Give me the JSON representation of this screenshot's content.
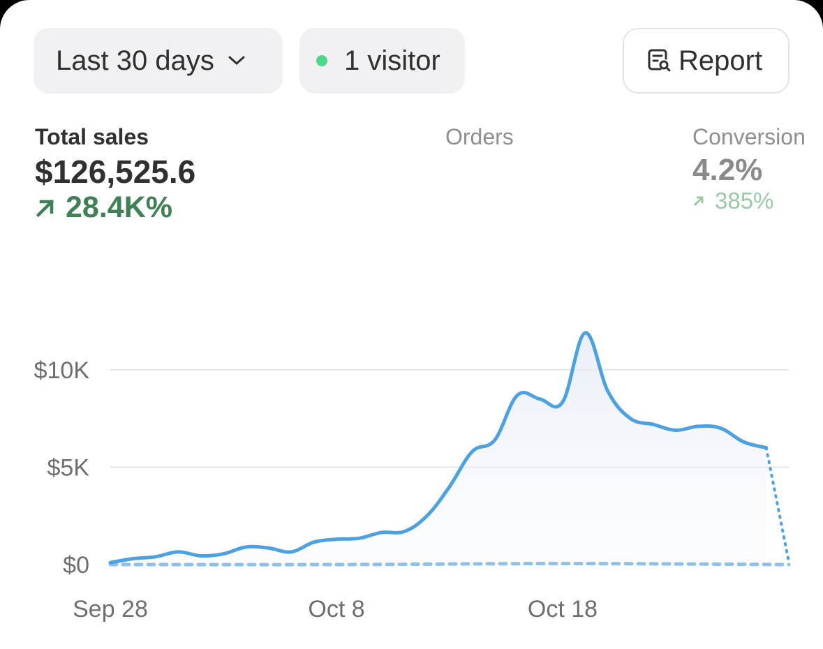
{
  "filters": {
    "date_range": "Last 30 days",
    "visitors": "1 visitor",
    "report_label": "Report"
  },
  "metrics": {
    "total_sales": {
      "label": "Total sales",
      "value": "$126,525.6",
      "change": "28.4K%"
    },
    "orders": {
      "label": "Orders"
    },
    "conversion": {
      "label": "Conversion",
      "value": "4.2%",
      "change": "385%"
    }
  },
  "colors": {
    "accent_line": "#4c9fe0",
    "positive": "#3f8057",
    "positive_muted": "#9cc7a7",
    "live_dot": "#4ed78a"
  },
  "chart_data": {
    "type": "line",
    "x_tick_labels": [
      "Sep 28",
      "Oct 8",
      "Oct 18"
    ],
    "y_tick_labels": [
      "$0",
      "$5K",
      "$10K"
    ],
    "ylim": [
      0,
      12000
    ],
    "grid": true,
    "series": [
      {
        "style": "solid",
        "x": [
          "Sep 28",
          "Sep 29",
          "Sep 30",
          "Oct 1",
          "Oct 2",
          "Oct 3",
          "Oct 4",
          "Oct 5",
          "Oct 6",
          "Oct 7",
          "Oct 8",
          "Oct 9",
          "Oct 10",
          "Oct 11",
          "Oct 12",
          "Oct 13",
          "Oct 14",
          "Oct 15",
          "Oct 16",
          "Oct 17",
          "Oct 18",
          "Oct 19",
          "Oct 20",
          "Oct 21",
          "Oct 22",
          "Oct 23",
          "Oct 24",
          "Oct 25",
          "Oct 26",
          "Oct 27"
        ],
        "values": [
          100,
          300,
          400,
          650,
          450,
          550,
          900,
          850,
          650,
          1150,
          1300,
          1350,
          1650,
          1700,
          2500,
          4000,
          5800,
          6400,
          8700,
          8500,
          8350,
          11900,
          8900,
          7500,
          7200,
          6900,
          7100,
          7000,
          6300,
          6000
        ]
      },
      {
        "style": "dotted",
        "x": [
          "Oct 27",
          "Oct 28"
        ],
        "values": [
          6000,
          150
        ]
      },
      {
        "style": "dotted",
        "x": [
          "Sep 28",
          "Oct 8",
          "Oct 18",
          "Oct 28"
        ],
        "values": [
          0,
          0,
          50,
          0
        ]
      }
    ]
  }
}
